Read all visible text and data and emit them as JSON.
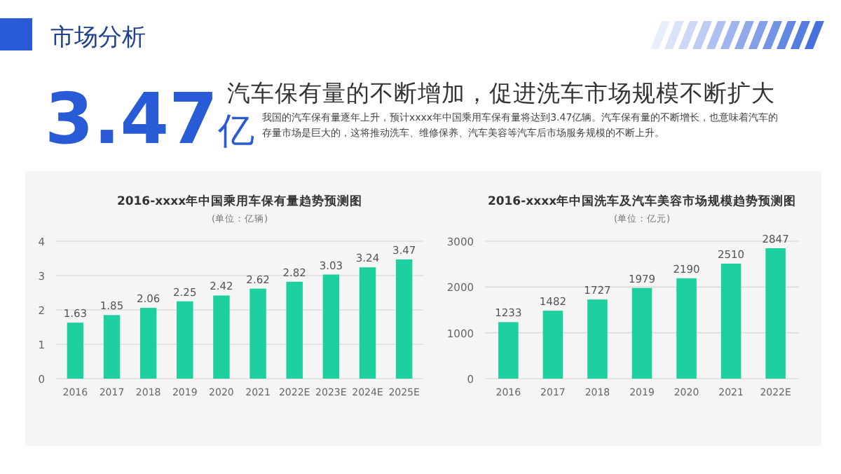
{
  "chart_data": [
    {
      "type": "other",
      "title": "市场分析",
      "annotations": [
        "3.47亿",
        "汽车保有量的不断增加，促进洗车市场规模不断扩大",
        "我国的汽车保有量逐年上升，预计xxxx年中国乘用车保有量将达到3.47亿辆。汽车保有量的不断增长，也意味着汽车的存量市场是巨大的，这将推动洗车、维修保养、汽车美容等汽车后市场服务规模的不断上升。"
      ]
    },
    {
      "type": "bar",
      "title": "2016-xxxx年中国乘用车保有量趋势预测图",
      "subtitle": "(单位：亿辆)",
      "categories": [
        "2016",
        "2017",
        "2018",
        "2019",
        "2020",
        "2021",
        "2022E",
        "2023E",
        "2024E",
        "2025E"
      ],
      "values": [
        1.63,
        1.85,
        2.06,
        2.25,
        2.42,
        2.62,
        2.82,
        3.03,
        3.24,
        3.47
      ],
      "color": "#1ecf9f",
      "ylim": [
        0,
        4
      ],
      "yticks": [
        0,
        1,
        2,
        3,
        4
      ],
      "grid": "y",
      "data_labels": true
    },
    {
      "type": "bar",
      "title": "2016-xxxx年中国洗车及汽车美容市场规模趋势预测图",
      "subtitle": "(单位：亿元)",
      "categories": [
        "2016",
        "2017",
        "2018",
        "2019",
        "2020",
        "2021",
        "2022E"
      ],
      "values": [
        1233,
        1482,
        1727,
        1979,
        2190,
        2510,
        2847
      ],
      "color": "#1ecf9f",
      "ylim": [
        0,
        3000
      ],
      "yticks": [
        0,
        1000,
        2000,
        3000
      ],
      "grid": "y",
      "data_labels": true
    }
  ]
}
